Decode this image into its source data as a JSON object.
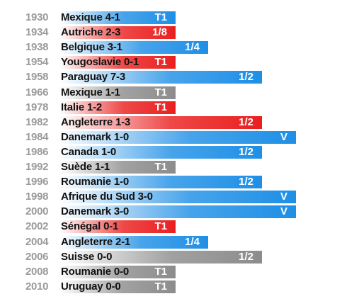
{
  "chart_data": {
    "type": "bar",
    "orientation": "horizontal",
    "value_scale": [
      "T1",
      "1/8",
      "1/4",
      "1/2",
      "V"
    ],
    "rows": [
      {
        "year": "1930",
        "match": "Mexique 4-1",
        "round": "T1",
        "result": "win"
      },
      {
        "year": "1934",
        "match": "Autriche 2-3",
        "round": "1/8",
        "result": "loss"
      },
      {
        "year": "1938",
        "match": "Belgique 3-1",
        "round": "1/4",
        "result": "win"
      },
      {
        "year": "1954",
        "match": "Yougoslavie 0-1",
        "round": "T1",
        "result": "loss"
      },
      {
        "year": "1958",
        "match": "Paraguay 7-3",
        "round": "1/2",
        "result": "win"
      },
      {
        "year": "1966",
        "match": "Mexique 1-1",
        "round": "T1",
        "result": "draw"
      },
      {
        "year": "1978",
        "match": "Italie 1-2",
        "round": "T1",
        "result": "loss"
      },
      {
        "year": "1982",
        "match": "Angleterre 1-3",
        "round": "1/2",
        "result": "loss"
      },
      {
        "year": "1984",
        "match": "Danemark 1-0",
        "round": "V",
        "result": "win"
      },
      {
        "year": "1986",
        "match": "Canada 1-0",
        "round": "1/2",
        "result": "win"
      },
      {
        "year": "1992",
        "match": "Suède 1-1",
        "round": "T1",
        "result": "draw"
      },
      {
        "year": "1996",
        "match": "Roumanie 1-0",
        "round": "1/2",
        "result": "win"
      },
      {
        "year": "1998",
        "match": "Afrique du Sud 3-0",
        "round": "V",
        "result": "win"
      },
      {
        "year": "2000",
        "match": "Danemark 3-0",
        "round": "V",
        "result": "win"
      },
      {
        "year": "2002",
        "match": "Sénégal 0-1",
        "round": "T1",
        "result": "loss"
      },
      {
        "year": "2004",
        "match": "Angleterre 2-1",
        "round": "1/4",
        "result": "win"
      },
      {
        "year": "2006",
        "match": "Suisse 0-0",
        "round": "1/2",
        "result": "draw"
      },
      {
        "year": "2008",
        "match": "Roumanie 0-0",
        "round": "T1",
        "result": "draw"
      },
      {
        "year": "2010",
        "match": "Uruguay 0-0",
        "round": "T1",
        "result": "draw"
      }
    ],
    "colors": {
      "win": "#1e8fe6",
      "loss": "#ea1f1f",
      "draw": "#8c8c8c"
    }
  }
}
